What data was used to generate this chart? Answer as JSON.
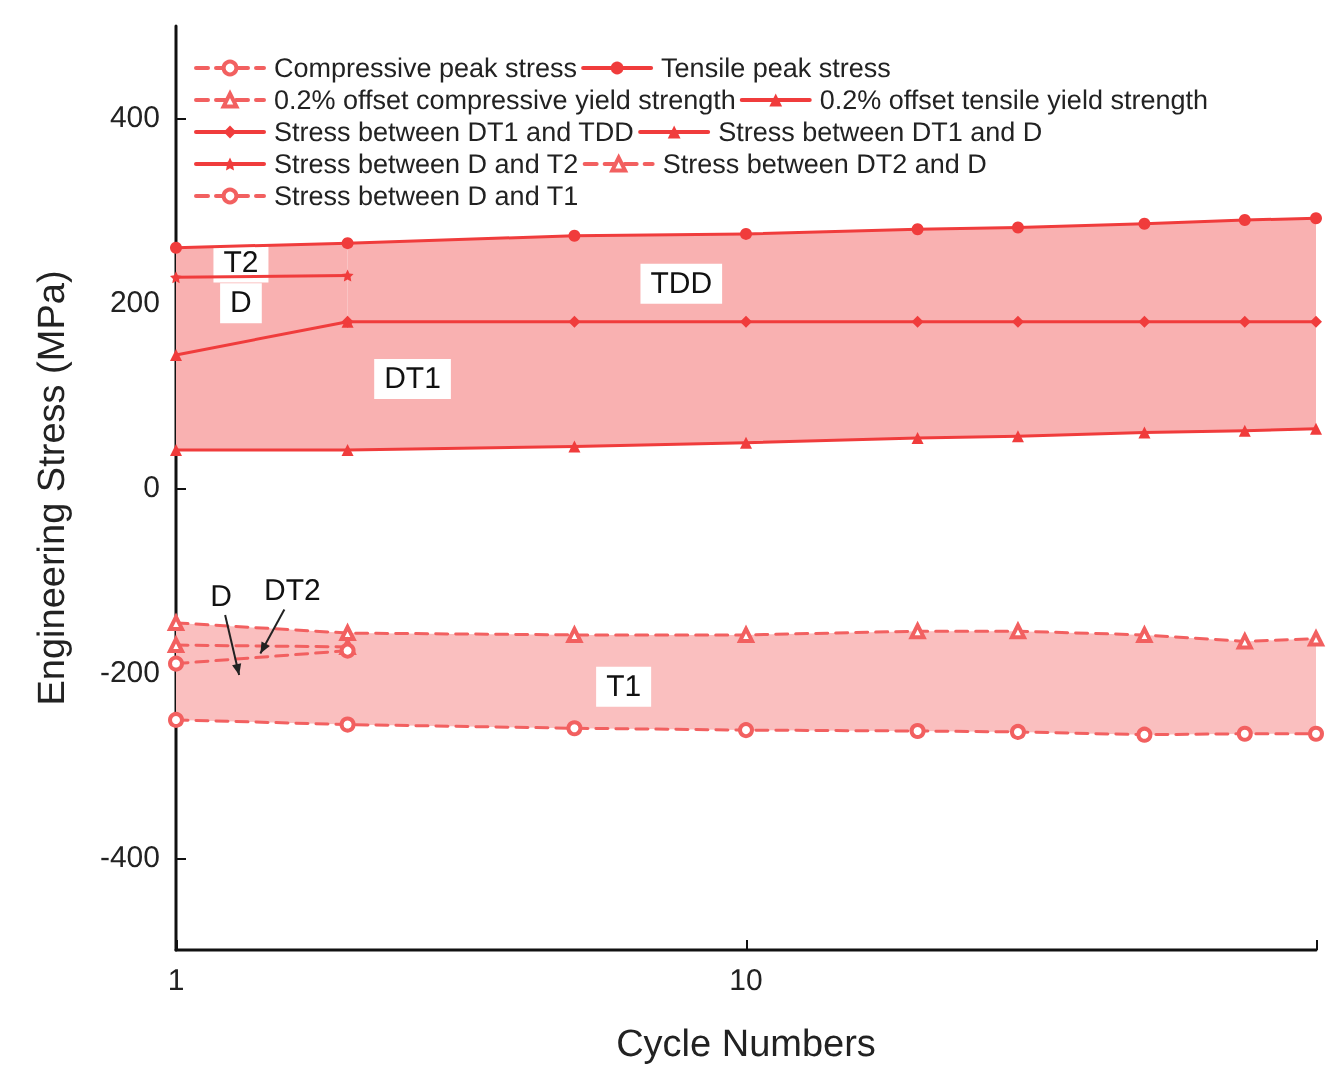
{
  "chart_data": {
    "type": "line",
    "xlabel": "Cycle Numbers",
    "ylabel": "Engineering Stress (MPa)",
    "log": "x",
    "xlim": [
      1,
      100
    ],
    "xticks": [
      1,
      10,
      {
        "value": 100,
        "label": null
      }
    ],
    "ylim": [
      -500,
      500
    ],
    "yticks": [
      -400,
      -200,
      0,
      200,
      400
    ],
    "grid": false,
    "legend": "top",
    "series": [
      {
        "name": "Compressive peak stress",
        "color": "#f26060",
        "line_style": "dashed",
        "marker": "circle",
        "x": [
          1,
          2,
          5,
          10,
          20,
          30,
          50,
          75,
          100
        ],
        "values": [
          -251,
          -256,
          -260,
          -262,
          -263,
          -264,
          -267,
          -266,
          -266
        ],
        "lower": [
          -251,
          -256,
          -260,
          -262,
          -263,
          -264,
          -267,
          -266,
          -266
        ],
        "upper": [
          -146,
          -157,
          -159,
          -159,
          -155,
          -155,
          -159,
          -166,
          -163
        ]
      },
      {
        "name": "Tensile peak stress",
        "color": "#f03c3c",
        "line_style": "solid",
        "marker": "circle",
        "x": [
          1,
          2,
          5,
          10,
          20,
          30,
          50,
          75,
          100
        ],
        "values": [
          260,
          265,
          273,
          275,
          280,
          282,
          286,
          290,
          292
        ]
      },
      {
        "name": "0.2% offset compressive yield strength",
        "color": "#f26060",
        "line_style": "dashed",
        "marker": "triangle",
        "x": [
          1,
          2,
          5,
          10,
          20,
          30,
          50,
          75,
          100
        ],
        "values": [
          -146,
          -157,
          -159,
          -159,
          -155,
          -155,
          -159,
          -166,
          -163
        ]
      },
      {
        "name": "0.2% offset tensile yield strength",
        "color": "#f03c3c",
        "line_style": "solid",
        "marker": "triangle",
        "x": [
          1,
          2,
          5,
          10,
          20,
          30,
          50,
          75,
          100
        ],
        "values": [
          41,
          41,
          45,
          49,
          54,
          56,
          60,
          62,
          64
        ],
        "lower": [
          41,
          41,
          45,
          49,
          54,
          56,
          60,
          62,
          64
        ],
        "upper": [
          144,
          180,
          180,
          180,
          180,
          180,
          180,
          180,
          180
        ]
      },
      {
        "name": "Stress between DT1 and TDD",
        "color": "#f03c3c",
        "line_style": "solid",
        "marker": "diamond",
        "x": [
          2,
          5,
          10,
          20,
          30,
          50,
          75,
          100
        ],
        "values": [
          180,
          180,
          180,
          180,
          180,
          180,
          180,
          180
        ],
        "lower": [
          180,
          180,
          180,
          180,
          180,
          180,
          180,
          180
        ],
        "upper": [
          265,
          273,
          275,
          280,
          282,
          286,
          290,
          292
        ]
      },
      {
        "name": "Stress between DT1 and D",
        "color": "#f03c3c",
        "line_style": "solid",
        "marker": "triangle",
        "x": [
          1,
          2
        ],
        "values": [
          144,
          180
        ],
        "lower": [
          144,
          180
        ],
        "upper": [
          228,
          230
        ]
      },
      {
        "name": "Stress between D and T2",
        "color": "#f03c3c",
        "line_style": "solid",
        "marker": "star",
        "x": [
          1,
          2
        ],
        "values": [
          228,
          230
        ],
        "lower": [
          228,
          230
        ],
        "upper": [
          260,
          265
        ]
      },
      {
        "name": "Stress between DT2 and D",
        "color": "#f26060",
        "line_style": "dashed",
        "marker": "triangle",
        "x": [
          1,
          2
        ],
        "values": [
          -170,
          -172
        ]
      },
      {
        "name": "Stress between D and T1",
        "color": "#f26060",
        "line_style": "dashed",
        "marker": "circle",
        "x": [
          1,
          2
        ],
        "values": [
          -190,
          -176
        ]
      }
    ],
    "annotations": [
      {
        "text": "T2",
        "x": 1.3,
        "y": 244
      },
      {
        "text": "D",
        "x": 1.3,
        "y": 200
      },
      {
        "text": "TDD",
        "x": 7.7,
        "y": 221
      },
      {
        "text": "DT1",
        "x": 2.6,
        "y": 118
      },
      {
        "text": "D",
        "x": 1.2,
        "y": -118
      },
      {
        "text": "DT2",
        "x": 1.6,
        "y": -112
      },
      {
        "text": "T1",
        "x": 6.1,
        "y": -215
      }
    ]
  }
}
